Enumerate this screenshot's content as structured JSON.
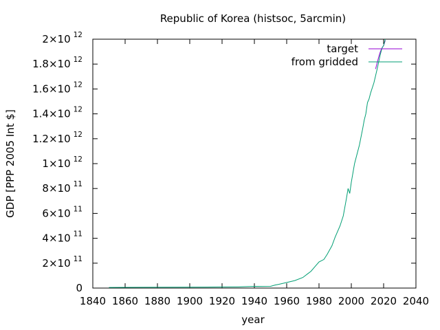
{
  "chart_data": {
    "type": "line",
    "title": "Republic of Korea (histsoc, 5arcmin)",
    "xlabel": "year",
    "ylabel": "GDP [PPP 2005 Int $]",
    "xlim": [
      1840,
      2040
    ],
    "ylim": [
      0,
      2000000000000
    ],
    "x_ticks": [
      1840,
      1860,
      1880,
      1900,
      1920,
      1940,
      1960,
      1980,
      2000,
      2020,
      2040
    ],
    "y_ticks": [
      {
        "value": 0,
        "mantissa": "0",
        "exponent": ""
      },
      {
        "value": 200000000000,
        "mantissa": "2×10",
        "exponent": "11"
      },
      {
        "value": 400000000000,
        "mantissa": "4×10",
        "exponent": "11"
      },
      {
        "value": 600000000000,
        "mantissa": "6×10",
        "exponent": "11"
      },
      {
        "value": 800000000000,
        "mantissa": "8×10",
        "exponent": "11"
      },
      {
        "value": 1000000000000,
        "mantissa": "1×10",
        "exponent": "12"
      },
      {
        "value": 1200000000000,
        "mantissa": "1.2×10",
        "exponent": "12"
      },
      {
        "value": 1400000000000,
        "mantissa": "1.4×10",
        "exponent": "12"
      },
      {
        "value": 1600000000000,
        "mantissa": "1.6×10",
        "exponent": "12"
      },
      {
        "value": 1800000000000,
        "mantissa": "1.8×10",
        "exponent": "12"
      },
      {
        "value": 2000000000000,
        "mantissa": "2×10",
        "exponent": "12"
      }
    ],
    "grid": false,
    "legend_position": "top-right",
    "series": [
      {
        "name": "target",
        "color": "#9400d3",
        "x": [
          2015,
          2016,
          2017,
          2018,
          2019,
          2020,
          2021
        ],
        "y": [
          1760000000000,
          1810000000000,
          1860000000000,
          1900000000000,
          1930000000000,
          1950000000000,
          1990000000000
        ]
      },
      {
        "name": "from gridded",
        "color": "#009e73",
        "x": [
          1850,
          1870,
          1890,
          1910,
          1920,
          1930,
          1940,
          1945,
          1950,
          1953,
          1955,
          1960,
          1965,
          1970,
          1973,
          1975,
          1978,
          1980,
          1983,
          1985,
          1988,
          1990,
          1993,
          1995,
          1997,
          1998,
          1999,
          2000,
          2002,
          2005,
          2007,
          2008,
          2009,
          2010,
          2011,
          2012,
          2014,
          2016,
          2018,
          2019,
          2020,
          2021
        ],
        "y": [
          5000000000,
          6000000000,
          7000000000,
          8000000000,
          9000000000,
          10000000000,
          14000000000,
          13000000000,
          14000000000,
          25000000000,
          30000000000,
          45000000000,
          60000000000,
          85000000000,
          115000000000,
          135000000000,
          180000000000,
          210000000000,
          230000000000,
          270000000000,
          340000000000,
          410000000000,
          500000000000,
          580000000000,
          720000000000,
          800000000000,
          760000000000,
          850000000000,
          1000000000000,
          1150000000000,
          1280000000000,
          1350000000000,
          1400000000000,
          1490000000000,
          1520000000000,
          1570000000000,
          1650000000000,
          1760000000000,
          1880000000000,
          1930000000000,
          1950000000000,
          2000000000000
        ]
      }
    ]
  }
}
